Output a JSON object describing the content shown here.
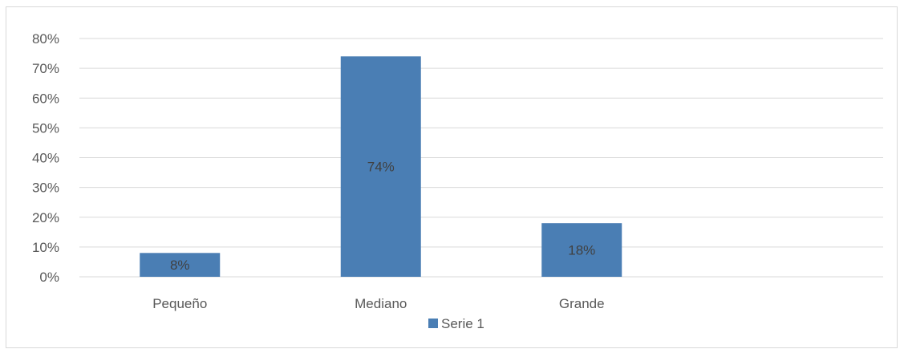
{
  "chart_data": {
    "type": "bar",
    "categories": [
      "Pequeño",
      "Mediano",
      "Grande"
    ],
    "series": [
      {
        "name": "Serie 1",
        "values": [
          8,
          74,
          18
        ],
        "color": "#4a7eb4"
      }
    ],
    "data_labels": [
      "8%",
      "74%",
      "18%"
    ],
    "ylim": [
      0,
      80
    ],
    "y_ticks": [
      0,
      10,
      20,
      30,
      40,
      50,
      60,
      70,
      80
    ],
    "y_tick_labels": [
      "0%",
      "10%",
      "20%",
      "30%",
      "40%",
      "50%",
      "60%",
      "70%",
      "80%"
    ],
    "grid": true,
    "gridline_color": "#d9d9d9",
    "legend_position": "bottom",
    "title": "",
    "xlabel": "",
    "ylabel": ""
  }
}
